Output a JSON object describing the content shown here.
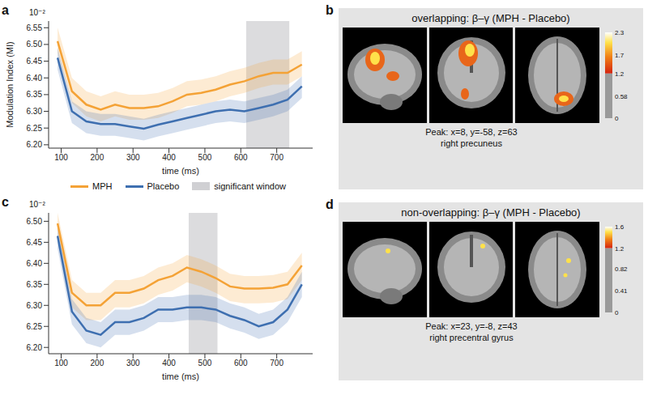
{
  "chart_data": [
    {
      "panel": "a",
      "type": "line",
      "x_label": "time (ms)",
      "y_label": "Modulation Index (MI)",
      "axis_multiplier": "10⁻²",
      "x": [
        90,
        130,
        170,
        210,
        250,
        290,
        330,
        370,
        410,
        450,
        490,
        530,
        570,
        610,
        650,
        690,
        730,
        770
      ],
      "xlim": [
        65,
        800
      ],
      "xticks": [
        100,
        200,
        300,
        400,
        500,
        600,
        700
      ],
      "ylim": [
        6.19,
        6.57
      ],
      "yticks": [
        {
          "value": 6.2,
          "label": "6.20"
        },
        6.25,
        {
          "value": 6.3,
          "label": "6.30"
        },
        6.35,
        {
          "value": 6.4,
          "label": "6.40"
        },
        6.45,
        {
          "value": 6.5,
          "label": "6.50"
        },
        6.55
      ],
      "series": [
        {
          "name": "MPH",
          "color": "#f4a236",
          "values": [
            6.51,
            6.36,
            6.32,
            6.305,
            6.32,
            6.31,
            6.31,
            6.315,
            6.33,
            6.35,
            6.355,
            6.365,
            6.38,
            6.39,
            6.405,
            6.415,
            6.415,
            6.44
          ],
          "lower": [
            6.475,
            6.325,
            6.285,
            6.27,
            6.285,
            6.275,
            6.275,
            6.28,
            6.295,
            6.315,
            6.32,
            6.33,
            6.345,
            6.355,
            6.37,
            6.38,
            6.38,
            6.405
          ],
          "upper": [
            6.55,
            6.4,
            6.36,
            6.345,
            6.36,
            6.35,
            6.35,
            6.355,
            6.37,
            6.39,
            6.395,
            6.405,
            6.42,
            6.43,
            6.445,
            6.455,
            6.455,
            6.48
          ]
        },
        {
          "name": "Placebo",
          "color": "#3e6fb0",
          "values": [
            6.46,
            6.3,
            6.27,
            6.262,
            6.262,
            6.255,
            6.248,
            6.26,
            6.27,
            6.28,
            6.29,
            6.3,
            6.305,
            6.3,
            6.31,
            6.32,
            6.335,
            6.375
          ],
          "lower": [
            6.425,
            6.265,
            6.235,
            6.227,
            6.227,
            6.22,
            6.213,
            6.225,
            6.235,
            6.245,
            6.255,
            6.265,
            6.27,
            6.265,
            6.275,
            6.285,
            6.3,
            6.34
          ],
          "upper": [
            6.49,
            6.33,
            6.3,
            6.292,
            6.292,
            6.285,
            6.278,
            6.29,
            6.3,
            6.31,
            6.32,
            6.33,
            6.335,
            6.33,
            6.34,
            6.35,
            6.365,
            6.405
          ]
        }
      ],
      "shaded_region": {
        "name": "significant window",
        "color": "#c4c4c8",
        "x": [
          615,
          735
        ]
      },
      "legend": "bottom"
    },
    {
      "panel": "c",
      "type": "line",
      "x_label": "time (ms)",
      "x": [
        90,
        130,
        170,
        210,
        250,
        290,
        330,
        370,
        410,
        450,
        490,
        530,
        570,
        610,
        650,
        690,
        730,
        770
      ],
      "xlim": [
        65,
        800
      ],
      "xticks": [
        100,
        200,
        300,
        400,
        500,
        600,
        700
      ],
      "axis_multiplier": "10⁻²",
      "ylim": [
        6.185,
        6.52
      ],
      "yticks": [
        {
          "value": 6.2,
          "label": "6.20"
        },
        6.25,
        {
          "value": 6.3,
          "label": "6.30"
        },
        6.35,
        {
          "value": 6.4,
          "label": "6.40"
        },
        6.45,
        {
          "value": 6.5,
          "label": "6.50"
        }
      ],
      "series": [
        {
          "name": "MPH",
          "color": "#f4a236",
          "values": [
            6.495,
            6.33,
            6.3,
            6.3,
            6.33,
            6.33,
            6.34,
            6.36,
            6.37,
            6.39,
            6.38,
            6.365,
            6.345,
            6.34,
            6.34,
            6.342,
            6.35,
            6.395
          ],
          "lower": [
            6.46,
            6.295,
            6.265,
            6.265,
            6.295,
            6.295,
            6.305,
            6.325,
            6.335,
            6.355,
            6.345,
            6.33,
            6.31,
            6.305,
            6.305,
            6.307,
            6.315,
            6.36
          ],
          "upper": [
            6.52,
            6.36,
            6.33,
            6.33,
            6.36,
            6.36,
            6.37,
            6.39,
            6.4,
            6.42,
            6.41,
            6.395,
            6.375,
            6.37,
            6.37,
            6.372,
            6.38,
            6.425
          ]
        },
        {
          "name": "Placebo",
          "color": "#3e6fb0",
          "values": [
            6.465,
            6.285,
            6.24,
            6.23,
            6.26,
            6.26,
            6.27,
            6.29,
            6.29,
            6.295,
            6.295,
            6.29,
            6.275,
            6.265,
            6.25,
            6.26,
            6.29,
            6.35
          ],
          "lower": [
            6.435,
            6.255,
            6.21,
            6.2,
            6.23,
            6.23,
            6.24,
            6.26,
            6.26,
            6.265,
            6.265,
            6.26,
            6.245,
            6.235,
            6.22,
            6.23,
            6.26,
            6.32
          ],
          "upper": [
            6.495,
            6.315,
            6.27,
            6.26,
            6.29,
            6.29,
            6.3,
            6.32,
            6.32,
            6.325,
            6.325,
            6.32,
            6.305,
            6.295,
            6.28,
            6.29,
            6.32,
            6.38
          ]
        }
      ],
      "shaded_region": {
        "color": "#c4c4c8",
        "x": [
          455,
          535
        ]
      }
    }
  ],
  "images": [
    {
      "panel": "b",
      "type": "image",
      "title": "overlapping: β–γ (MPH - Placebo)",
      "peak": "Peak: x=8, y=-58, z=63",
      "region": "right precuneus",
      "colorbar": {
        "range": [
          0,
          2.3
        ],
        "ticks": [
          0,
          0.58,
          1.2,
          1.7,
          2.3
        ],
        "threshold": 1.2
      }
    },
    {
      "panel": "d",
      "type": "image",
      "title": "non-overlapping: β–γ (MPH - Placebo)",
      "peak": "Peak: x=23, y=-8, z=43",
      "region": "right precentral gyrus",
      "colorbar": {
        "range": [
          0,
          1.6
        ],
        "ticks": [
          0,
          0.41,
          0.82,
          1.2,
          1.6
        ],
        "threshold": 1.2
      }
    }
  ]
}
